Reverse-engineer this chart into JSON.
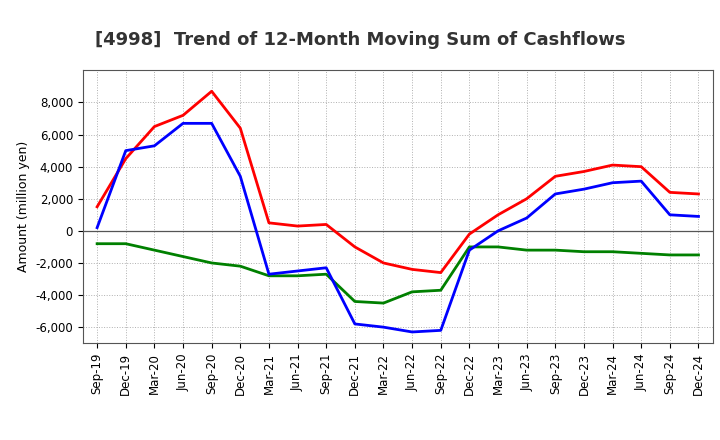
{
  "title": "[4998]  Trend of 12-Month Moving Sum of Cashflows",
  "ylabel": "Amount (million yen)",
  "x_labels": [
    "Sep-19",
    "Dec-19",
    "Mar-20",
    "Jun-20",
    "Sep-20",
    "Dec-20",
    "Mar-21",
    "Jun-21",
    "Sep-21",
    "Dec-21",
    "Mar-22",
    "Jun-22",
    "Sep-22",
    "Dec-22",
    "Mar-23",
    "Jun-23",
    "Sep-23",
    "Dec-23",
    "Mar-24",
    "Jun-24",
    "Sep-24",
    "Dec-24"
  ],
  "operating_cashflow": [
    1500,
    4500,
    6500,
    7200,
    8700,
    6400,
    500,
    300,
    400,
    -1000,
    -2000,
    -2400,
    -2600,
    -200,
    1000,
    2000,
    3400,
    3700,
    4100,
    4000,
    2400,
    2300
  ],
  "investing_cashflow": [
    -800,
    -800,
    -1200,
    -1600,
    -2000,
    -2200,
    -2800,
    -2800,
    -2700,
    -4400,
    -4500,
    -3800,
    -3700,
    -1000,
    -1000,
    -1200,
    -1200,
    -1300,
    -1300,
    -1400,
    -1500,
    -1500
  ],
  "free_cashflow": [
    200,
    5000,
    5300,
    6700,
    6700,
    3400,
    -2700,
    -2500,
    -2300,
    -5800,
    -6000,
    -6300,
    -6200,
    -1200,
    0,
    800,
    2300,
    2600,
    3000,
    3100,
    1000,
    900
  ],
  "operating_color": "#ff0000",
  "investing_color": "#008000",
  "free_color": "#0000ff",
  "ylim": [
    -7000,
    10000
  ],
  "yticks": [
    -6000,
    -4000,
    -2000,
    0,
    2000,
    4000,
    6000,
    8000
  ],
  "background_color": "#ffffff",
  "grid_color": "#b0b0b0",
  "line_width": 2.0,
  "title_fontsize": 13,
  "ylabel_fontsize": 9,
  "tick_fontsize": 8.5,
  "legend_fontsize": 9
}
